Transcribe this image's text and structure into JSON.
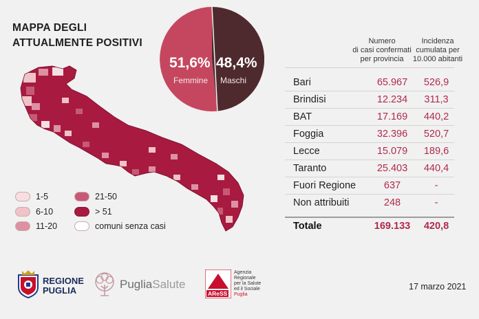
{
  "title": {
    "line1": "MAPPA DEGLI",
    "line2": "ATTUALMENTE POSITIVI"
  },
  "pie": {
    "female_value": "51,6%",
    "female_label": "Femmine",
    "male_value": "48,4%",
    "male_label": "Maschi",
    "female_color": "#c5475f",
    "male_color": "#4e2a2e"
  },
  "legend": {
    "items": [
      {
        "label": "1-5",
        "color": "#f6dfe2"
      },
      {
        "label": "6-10",
        "color": "#f0c3c9"
      },
      {
        "label": "11-20",
        "color": "#dd91a3"
      },
      {
        "label": "21-50",
        "color": "#c65a76"
      },
      {
        "label": "> 51",
        "color": "#a81a40"
      },
      {
        "label": "comuni senza casi",
        "color": "#ffffff"
      }
    ]
  },
  "table": {
    "header_cases": [
      "Numero",
      "di casi confermati",
      "per provincia"
    ],
    "header_incidence": [
      "Incidenza",
      "cumulata per",
      "10.000 abitanti"
    ],
    "rows": [
      {
        "name": "Bari",
        "cases": "65.967",
        "incidence": "526,9"
      },
      {
        "name": "Brindisi",
        "cases": "12.234",
        "incidence": "311,3"
      },
      {
        "name": "BAT",
        "cases": "17.169",
        "incidence": "440,2"
      },
      {
        "name": "Foggia",
        "cases": "32.396",
        "incidence": "520,7"
      },
      {
        "name": "Lecce",
        "cases": "15.079",
        "incidence": "189,6"
      },
      {
        "name": "Taranto",
        "cases": "25.403",
        "incidence": "440,4"
      },
      {
        "name": "Fuori Regione",
        "cases": "637",
        "incidence": "-"
      },
      {
        "name": "Non attribuiti",
        "cases": "248",
        "incidence": "-"
      }
    ],
    "total": {
      "name": "Totale",
      "cases": "169.133",
      "incidence": "420,8"
    }
  },
  "footer": {
    "regione_line1": "REGIONE",
    "regione_line2": "PUGLIA",
    "puglia_salute_a": "Puglia",
    "puglia_salute_b": "Salute",
    "aress_mark": "AReSS",
    "aress_lines": [
      "Agenzia",
      "Regionale",
      "per la Salute",
      "ed il Sociale",
      "Puglia"
    ],
    "date": "17 marzo 2021"
  }
}
